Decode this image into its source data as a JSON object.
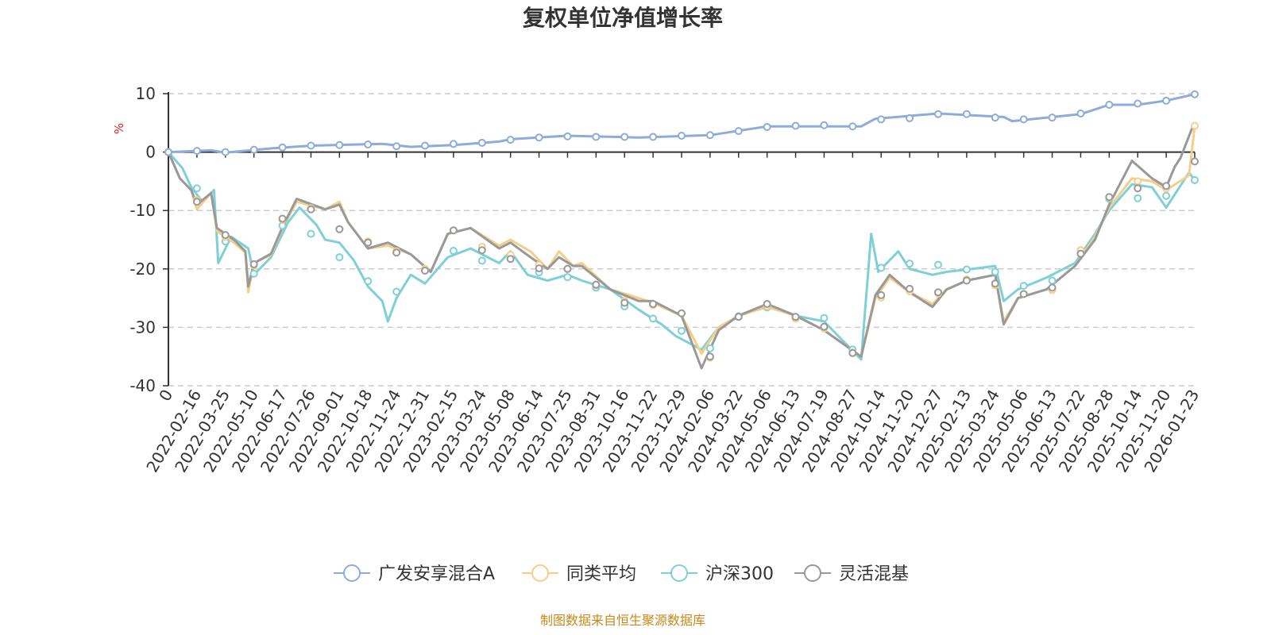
{
  "chart_data": {
    "type": "line",
    "title": "复权单位净值增长率",
    "ylabel": "%",
    "ylim": [
      -40,
      10
    ],
    "yticks": [
      10,
      0,
      -10,
      -20,
      -30,
      -40
    ],
    "grid": true,
    "legend_position": "bottom-center",
    "source": "制图数据来自恒生聚源数据库",
    "colors": {
      "axis": "#333333",
      "grid": "#cccccc",
      "unit": "#e02020",
      "source": "#c8891a",
      "title": "#333333"
    },
    "x": [
      "0",
      "2022-02-16",
      "2022-03-25",
      "2022-05-10",
      "2022-06-17",
      "2022-07-26",
      "2022-09-01",
      "2022-10-18",
      "2022-11-24",
      "2022-12-31",
      "2023-02-15",
      "2023-03-24",
      "2023-05-08",
      "2023-06-14",
      "2023-07-25",
      "2023-08-31",
      "2023-10-16",
      "2023-11-22",
      "2023-12-29",
      "2024-02-06",
      "2024-03-22",
      "2024-05-06",
      "2024-06-13",
      "2024-07-19",
      "2024-08-27",
      "2024-10-14",
      "2024-11-20",
      "2024-12-27",
      "2025-02-13",
      "2025-03-24",
      "2025-05-06",
      "2025-06-13",
      "2025-07-22",
      "2025-08-28",
      "2025-10-14",
      "2025-11-20",
      "2026-01-23"
    ],
    "series": [
      {
        "name": "广发安享混合A",
        "color": "#8eabd9",
        "values": [
          0,
          0.2,
          0,
          0.4,
          0.8,
          1.1,
          1.2,
          1.3,
          1.0,
          1.1,
          1.4,
          1.6,
          2.1,
          2.5,
          2.7,
          2.6,
          2.6,
          2.6,
          2.8,
          2.9,
          3.6,
          4.3,
          4.5,
          4.6,
          4.4,
          5.6,
          5.8,
          6.5,
          6.5,
          5.9,
          5.6,
          5.9,
          6.6,
          8.1,
          8.3,
          8.8,
          9.9
        ],
        "points": [
          {
            "x": 0,
            "y": 0
          },
          {
            "x": 1.5,
            "y": 0.3
          },
          {
            "x": 2.0,
            "y": -0.1
          },
          {
            "x": 3.5,
            "y": 0.6
          },
          {
            "x": 5.0,
            "y": 1.1
          },
          {
            "x": 7.5,
            "y": 1.4
          },
          {
            "x": 8.5,
            "y": 0.9
          },
          {
            "x": 10.0,
            "y": 1.2
          },
          {
            "x": 11.6,
            "y": 1.8
          },
          {
            "x": 12.0,
            "y": 2.2
          },
          {
            "x": 14.0,
            "y": 2.8
          },
          {
            "x": 16.5,
            "y": 2.5
          },
          {
            "x": 19.0,
            "y": 2.9
          },
          {
            "x": 21.0,
            "y": 4.4
          },
          {
            "x": 24.3,
            "y": 4.4
          },
          {
            "x": 24.8,
            "y": 5.7
          },
          {
            "x": 27.0,
            "y": 6.6
          },
          {
            "x": 29.3,
            "y": 6.0
          },
          {
            "x": 29.6,
            "y": 5.3
          },
          {
            "x": 32.0,
            "y": 6.5
          },
          {
            "x": 33.0,
            "y": 8.1
          },
          {
            "x": 34.0,
            "y": 8.1
          },
          {
            "x": 35.0,
            "y": 8.8
          },
          {
            "x": 36.0,
            "y": 9.9
          }
        ]
      },
      {
        "name": "同类平均",
        "color": "#f5cf8a",
        "values": [
          0,
          -8.2,
          -14.5,
          -19.4,
          -11.6,
          -9.6,
          -13.2,
          -15.3,
          -17.0,
          -20.0,
          -13.4,
          -16.2,
          -17.6,
          -19.3,
          -20.0,
          -22.8,
          -25.5,
          -26.2,
          -27.6,
          -35.2,
          -28.2,
          -26.4,
          -28.5,
          -30.2,
          -34.3,
          -24.9,
          -23.8,
          -24.2,
          -21.8,
          -22.8,
          -24.3,
          -23.6,
          -16.8,
          -7.8,
          -5.0,
          -6.2,
          4.5
        ],
        "points": [
          {
            "x": 0,
            "y": 0
          },
          {
            "x": 0.4,
            "y": -4.5
          },
          {
            "x": 0.8,
            "y": -6.5
          },
          {
            "x": 1.0,
            "y": -9.8
          },
          {
            "x": 1.5,
            "y": -7.0
          },
          {
            "x": 1.7,
            "y": -13.5
          },
          {
            "x": 2.3,
            "y": -15.5
          },
          {
            "x": 2.7,
            "y": -17.2
          },
          {
            "x": 2.8,
            "y": -24.0
          },
          {
            "x": 3.0,
            "y": -19.0
          },
          {
            "x": 3.6,
            "y": -17.6
          },
          {
            "x": 4.0,
            "y": -13.0
          },
          {
            "x": 4.5,
            "y": -8.5
          },
          {
            "x": 5.5,
            "y": -9.8
          },
          {
            "x": 6.0,
            "y": -8.5
          },
          {
            "x": 6.3,
            "y": -12.0
          },
          {
            "x": 7.0,
            "y": -16.5
          },
          {
            "x": 7.7,
            "y": -16.0
          },
          {
            "x": 8.5,
            "y": -17.5
          },
          {
            "x": 9.2,
            "y": -20.5
          },
          {
            "x": 9.8,
            "y": -14.0
          },
          {
            "x": 10.6,
            "y": -13.0
          },
          {
            "x": 11.6,
            "y": -16.0
          },
          {
            "x": 12.0,
            "y": -15.0
          },
          {
            "x": 12.7,
            "y": -17.0
          },
          {
            "x": 13.3,
            "y": -20.0
          },
          {
            "x": 13.7,
            "y": -17.0
          },
          {
            "x": 14.2,
            "y": -19.5
          },
          {
            "x": 14.5,
            "y": -19.0
          },
          {
            "x": 15.5,
            "y": -23.5
          },
          {
            "x": 16.5,
            "y": -25.0
          },
          {
            "x": 17.0,
            "y": -25.8
          },
          {
            "x": 18.0,
            "y": -28.0
          },
          {
            "x": 18.7,
            "y": -34.5
          },
          {
            "x": 19.3,
            "y": -30.0
          },
          {
            "x": 20.0,
            "y": -28.0
          },
          {
            "x": 21.0,
            "y": -26.5
          },
          {
            "x": 22.0,
            "y": -28.0
          },
          {
            "x": 23.0,
            "y": -30.5
          },
          {
            "x": 24.3,
            "y": -35.0
          },
          {
            "x": 24.8,
            "y": -25.0
          },
          {
            "x": 25.3,
            "y": -21.5
          },
          {
            "x": 26.0,
            "y": -24.0
          },
          {
            "x": 26.8,
            "y": -26.0
          },
          {
            "x": 27.3,
            "y": -23.5
          },
          {
            "x": 28.0,
            "y": -22.0
          },
          {
            "x": 29.0,
            "y": -21.0
          },
          {
            "x": 29.3,
            "y": -29.0
          },
          {
            "x": 29.8,
            "y": -25.0
          },
          {
            "x": 30.8,
            "y": -23.5
          },
          {
            "x": 31.8,
            "y": -19.5
          },
          {
            "x": 32.5,
            "y": -14.5
          },
          {
            "x": 33.0,
            "y": -9.5
          },
          {
            "x": 33.8,
            "y": -4.5
          },
          {
            "x": 34.5,
            "y": -5.0
          },
          {
            "x": 35.0,
            "y": -6.5
          },
          {
            "x": 35.8,
            "y": -4.0
          },
          {
            "x": 36.0,
            "y": 4.5
          }
        ]
      },
      {
        "name": "沪深300",
        "color": "#7fd0d6",
        "values": [
          0,
          -6.2,
          -15.3,
          -20.8,
          -12.6,
          -14.0,
          -18.0,
          -22.1,
          -23.9,
          -20.1,
          -16.9,
          -18.6,
          -17.6,
          -20.6,
          -21.4,
          -23.2,
          -26.4,
          -28.5,
          -30.6,
          -33.6,
          -28.1,
          -26.6,
          -28.4,
          -28.4,
          -33.8,
          -19.8,
          -19.1,
          -19.3,
          -20.1,
          -20.5,
          -22.9,
          -22.0,
          -16.8,
          -8.0,
          -7.9,
          -7.5,
          -4.8
        ],
        "points": [
          {
            "x": 0,
            "y": 0
          },
          {
            "x": 0.5,
            "y": -2.8
          },
          {
            "x": 0.8,
            "y": -6.0
          },
          {
            "x": 1.2,
            "y": -8.5
          },
          {
            "x": 1.6,
            "y": -6.5
          },
          {
            "x": 1.75,
            "y": -19.0
          },
          {
            "x": 2.2,
            "y": -14.5
          },
          {
            "x": 2.8,
            "y": -16.5
          },
          {
            "x": 3.0,
            "y": -21.0
          },
          {
            "x": 3.6,
            "y": -18.0
          },
          {
            "x": 4.2,
            "y": -12.0
          },
          {
            "x": 4.6,
            "y": -9.5
          },
          {
            "x": 5.2,
            "y": -12.5
          },
          {
            "x": 5.5,
            "y": -15.0
          },
          {
            "x": 6.0,
            "y": -15.5
          },
          {
            "x": 6.5,
            "y": -18.5
          },
          {
            "x": 7.0,
            "y": -23.0
          },
          {
            "x": 7.5,
            "y": -25.5
          },
          {
            "x": 7.7,
            "y": -29.0
          },
          {
            "x": 8.0,
            "y": -25.0
          },
          {
            "x": 8.5,
            "y": -21.0
          },
          {
            "x": 9.0,
            "y": -22.5
          },
          {
            "x": 9.8,
            "y": -18.0
          },
          {
            "x": 10.6,
            "y": -16.5
          },
          {
            "x": 11.6,
            "y": -19.0
          },
          {
            "x": 12.0,
            "y": -17.0
          },
          {
            "x": 12.6,
            "y": -21.0
          },
          {
            "x": 13.3,
            "y": -22.0
          },
          {
            "x": 14.0,
            "y": -21.0
          },
          {
            "x": 14.5,
            "y": -22.0
          },
          {
            "x": 15.5,
            "y": -23.5
          },
          {
            "x": 16.5,
            "y": -27.0
          },
          {
            "x": 17.3,
            "y": -29.5
          },
          {
            "x": 17.8,
            "y": -31.5
          },
          {
            "x": 18.7,
            "y": -33.8
          },
          {
            "x": 19.3,
            "y": -30.0
          },
          {
            "x": 20.0,
            "y": -28.0
          },
          {
            "x": 21.0,
            "y": -26.5
          },
          {
            "x": 22.0,
            "y": -28.0
          },
          {
            "x": 23.0,
            "y": -29.0
          },
          {
            "x": 24.3,
            "y": -35.5
          },
          {
            "x": 24.65,
            "y": -14.0
          },
          {
            "x": 24.9,
            "y": -20.5
          },
          {
            "x": 25.6,
            "y": -17.0
          },
          {
            "x": 26.0,
            "y": -20.0
          },
          {
            "x": 26.8,
            "y": -21.0
          },
          {
            "x": 27.3,
            "y": -20.5
          },
          {
            "x": 28.2,
            "y": -20.0
          },
          {
            "x": 29.0,
            "y": -19.5
          },
          {
            "x": 29.3,
            "y": -25.5
          },
          {
            "x": 29.8,
            "y": -23.5
          },
          {
            "x": 30.8,
            "y": -21.5
          },
          {
            "x": 31.8,
            "y": -19.0
          },
          {
            "x": 32.5,
            "y": -14.0
          },
          {
            "x": 33.0,
            "y": -10.0
          },
          {
            "x": 33.8,
            "y": -5.5
          },
          {
            "x": 34.5,
            "y": -6.0
          },
          {
            "x": 35.0,
            "y": -9.5
          },
          {
            "x": 35.8,
            "y": -3.5
          },
          {
            "x": 36.0,
            "y": -4.8
          }
        ]
      },
      {
        "name": "灵活混基",
        "color": "#999999",
        "values": [
          0,
          -8.5,
          -14.2,
          -19.2,
          -11.4,
          -9.8,
          -13.2,
          -15.5,
          -17.2,
          -20.3,
          -13.4,
          -16.8,
          -18.3,
          -19.9,
          -20.0,
          -22.7,
          -25.8,
          -26.0,
          -27.6,
          -35.0,
          -28.2,
          -26.0,
          -28.2,
          -29.9,
          -34.4,
          -24.5,
          -23.4,
          -24.0,
          -22.0,
          -22.5,
          -24.3,
          -23.2,
          -17.4,
          -7.7,
          -6.2,
          -5.8,
          -1.6
        ],
        "points": [
          {
            "x": 0,
            "y": 0
          },
          {
            "x": 0.4,
            "y": -4.5
          },
          {
            "x": 0.8,
            "y": -6.5
          },
          {
            "x": 1.0,
            "y": -9.0
          },
          {
            "x": 1.5,
            "y": -7.0
          },
          {
            "x": 1.7,
            "y": -13.0
          },
          {
            "x": 2.3,
            "y": -15.0
          },
          {
            "x": 2.7,
            "y": -17.0
          },
          {
            "x": 2.8,
            "y": -23.0
          },
          {
            "x": 3.0,
            "y": -19.0
          },
          {
            "x": 3.6,
            "y": -17.4
          },
          {
            "x": 4.0,
            "y": -12.8
          },
          {
            "x": 4.5,
            "y": -8.0
          },
          {
            "x": 5.5,
            "y": -9.8
          },
          {
            "x": 6.0,
            "y": -9.0
          },
          {
            "x": 6.3,
            "y": -12.0
          },
          {
            "x": 7.0,
            "y": -16.5
          },
          {
            "x": 7.7,
            "y": -15.5
          },
          {
            "x": 8.5,
            "y": -17.5
          },
          {
            "x": 9.2,
            "y": -20.5
          },
          {
            "x": 9.8,
            "y": -14.0
          },
          {
            "x": 10.6,
            "y": -13.0
          },
          {
            "x": 11.6,
            "y": -16.5
          },
          {
            "x": 12.0,
            "y": -15.5
          },
          {
            "x": 12.7,
            "y": -18.0
          },
          {
            "x": 13.3,
            "y": -20.0
          },
          {
            "x": 13.7,
            "y": -18.0
          },
          {
            "x": 14.2,
            "y": -19.5
          },
          {
            "x": 14.5,
            "y": -19.5
          },
          {
            "x": 15.5,
            "y": -23.5
          },
          {
            "x": 16.5,
            "y": -25.5
          },
          {
            "x": 17.0,
            "y": -25.5
          },
          {
            "x": 18.0,
            "y": -28.0
          },
          {
            "x": 18.7,
            "y": -37.0
          },
          {
            "x": 19.3,
            "y": -30.5
          },
          {
            "x": 20.0,
            "y": -28.0
          },
          {
            "x": 21.0,
            "y": -26.0
          },
          {
            "x": 22.0,
            "y": -28.0
          },
          {
            "x": 23.0,
            "y": -30.5
          },
          {
            "x": 24.3,
            "y": -35.0
          },
          {
            "x": 24.8,
            "y": -24.5
          },
          {
            "x": 25.3,
            "y": -21.0
          },
          {
            "x": 26.0,
            "y": -24.0
          },
          {
            "x": 26.8,
            "y": -26.5
          },
          {
            "x": 27.3,
            "y": -23.5
          },
          {
            "x": 28.0,
            "y": -22.0
          },
          {
            "x": 29.0,
            "y": -21.0
          },
          {
            "x": 29.3,
            "y": -29.5
          },
          {
            "x": 29.8,
            "y": -25.0
          },
          {
            "x": 30.8,
            "y": -23.5
          },
          {
            "x": 31.8,
            "y": -19.5
          },
          {
            "x": 32.5,
            "y": -15.0
          },
          {
            "x": 33.0,
            "y": -9.0
          },
          {
            "x": 33.8,
            "y": -1.5
          },
          {
            "x": 34.5,
            "y": -4.5
          },
          {
            "x": 35.0,
            "y": -6.0
          },
          {
            "x": 35.3,
            "y": -2.5
          },
          {
            "x": 35.5,
            "y": -1.0
          },
          {
            "x": 35.9,
            "y": 4.0
          }
        ]
      }
    ]
  }
}
